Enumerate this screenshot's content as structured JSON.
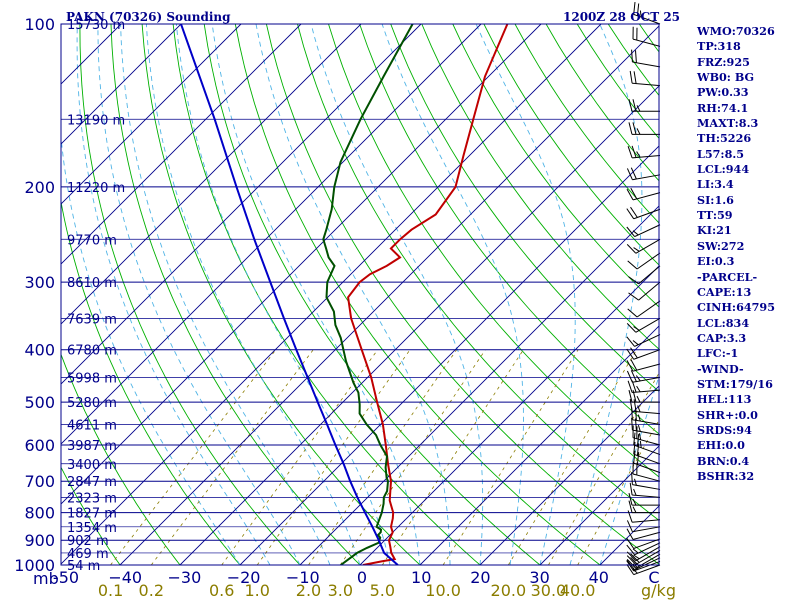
{
  "header": {
    "title": "PAKN (70326) Sounding",
    "time": "1200Z 28 OCT 25"
  },
  "colors": {
    "frame": "#00008b",
    "isotherm": "#00008b",
    "dry_adiabat": "#00b000",
    "moist_adiabat": "#50b4e6",
    "mixing_ratio": "#8b7d00",
    "temperature": "#c00000",
    "dewpoint": "#005000",
    "parcel": "#0000c8",
    "wind_barb": "#000000",
    "index_text": "#00008b"
  },
  "indices": [
    "WMO:70326",
    "TP:318",
    "FRZ:925",
    "WB0: BG",
    "PW:0.33",
    "RH:74.1",
    "MAXT:8.3",
    "TH:5226",
    "L57:8.5",
    "LCL:944",
    "LI:3.4",
    "SI:1.6",
    "TT:59",
    "KI:21",
    "SW:272",
    "EI:0.3",
    "-PARCEL-",
    "CAPE:13",
    "CINH:64795",
    "LCL:834",
    "CAP:3.3",
    "LFC:-1",
    "-WIND-",
    "STM:179/16",
    "HEL:113",
    "SHR+:0.0",
    "SRDS:94",
    "EHI:0.0",
    "BRN:0.4",
    "BSHR:32"
  ],
  "chart_data": {
    "type": "line",
    "subtype": "skew-t log-p sounding",
    "title": "PAKN (70326) Sounding",
    "valid_time": "1200Z 28 OCT 25",
    "y_axis": {
      "label": "mb",
      "scale": "log",
      "range": [
        1000,
        100
      ],
      "ticks": [
        100,
        200,
        300,
        400,
        500,
        600,
        700,
        800,
        900,
        1000
      ]
    },
    "x_axis": {
      "label": "C",
      "range": [
        -50,
        50
      ],
      "skew": "45 degrees",
      "ticks": [
        -50,
        -40,
        -30,
        -20,
        -10,
        0,
        10,
        20,
        30,
        40
      ]
    },
    "temperature_labels": [
      "-50",
      "−40",
      "−30",
      "−20",
      "−10",
      "0",
      "10",
      "20",
      "30",
      "40",
      "C"
    ],
    "mixing_ratio_axis": {
      "unit": "g/kg",
      "labels": [
        "0.1",
        "0.2",
        "0.6",
        "1.0",
        "2.0",
        "3.0",
        "5.0",
        "10.0",
        "20.0",
        "30.0",
        "40.0"
      ],
      "values": [
        0.1,
        0.2,
        0.6,
        1.0,
        2.0,
        3.0,
        5.0,
        10.0,
        20.0,
        30.0,
        40.0
      ]
    },
    "mixing_ratio_unit_label": "g/kg",
    "height_labels": [
      {
        "p": 100,
        "label": "15730 m"
      },
      {
        "p": 150,
        "label": "13190 m"
      },
      {
        "p": 200,
        "label": "11220 m"
      },
      {
        "p": 250,
        "label": "9770 m"
      },
      {
        "p": 300,
        "label": "8610 m"
      },
      {
        "p": 350,
        "label": "7639 m"
      },
      {
        "p": 400,
        "label": "6780 m"
      },
      {
        "p": 450,
        "label": "5998 m"
      },
      {
        "p": 500,
        "label": "5280 m"
      },
      {
        "p": 550,
        "label": "4611 m"
      },
      {
        "p": 600,
        "label": "3987 m"
      },
      {
        "p": 650,
        "label": "3400 m"
      },
      {
        "p": 700,
        "label": "2847 m"
      },
      {
        "p": 750,
        "label": "2323 m"
      },
      {
        "p": 800,
        "label": "1827 m"
      },
      {
        "p": 850,
        "label": "1354 m"
      },
      {
        "p": 900,
        "label": "902 m"
      },
      {
        "p": 950,
        "label": "469 m"
      },
      {
        "p": 1000,
        "label": "54 m"
      }
    ],
    "series": [
      {
        "name": "temperature",
        "points": [
          [
            1000,
            0.5
          ],
          [
            985,
            3.0
          ],
          [
            975,
            4.8
          ],
          [
            950,
            3.2
          ],
          [
            925,
            2.0
          ],
          [
            900,
            0.7
          ],
          [
            870,
            0.0
          ],
          [
            850,
            -1.2
          ],
          [
            820,
            -2.3
          ],
          [
            800,
            -3.2
          ],
          [
            760,
            -5.8
          ],
          [
            700,
            -8.8
          ],
          [
            650,
            -12.2
          ],
          [
            600,
            -15.7
          ],
          [
            550,
            -19.6
          ],
          [
            500,
            -24.3
          ],
          [
            450,
            -29.4
          ],
          [
            400,
            -35.6
          ],
          [
            350,
            -42.6
          ],
          [
            320,
            -46.6
          ],
          [
            300,
            -47.2
          ],
          [
            290,
            -46.8
          ],
          [
            280,
            -45.4
          ],
          [
            270,
            -44.6
          ],
          [
            260,
            -47.6
          ],
          [
            250,
            -47.6
          ],
          [
            240,
            -47.3
          ],
          [
            225,
            -45.8
          ],
          [
            200,
            -47.1
          ],
          [
            175,
            -51.0
          ],
          [
            150,
            -55.4
          ],
          [
            125,
            -60.6
          ],
          [
            100,
            -65.6
          ]
        ]
      },
      {
        "name": "dewpoint",
        "points": [
          [
            1000,
            -3.2
          ],
          [
            985,
            -3.0
          ],
          [
            950,
            -2.5
          ],
          [
            930,
            -1.7
          ],
          [
            910,
            -0.6
          ],
          [
            890,
            -1.2
          ],
          [
            880,
            -2.0
          ],
          [
            870,
            -2.0
          ],
          [
            860,
            -2.4
          ],
          [
            850,
            -3.6
          ],
          [
            800,
            -5.1
          ],
          [
            770,
            -6.3
          ],
          [
            750,
            -7.3
          ],
          [
            730,
            -7.8
          ],
          [
            700,
            -9.3
          ],
          [
            690,
            -10.1
          ],
          [
            660,
            -12.0
          ],
          [
            630,
            -13.6
          ],
          [
            600,
            -16.6
          ],
          [
            575,
            -19.0
          ],
          [
            550,
            -22.3
          ],
          [
            525,
            -25.3
          ],
          [
            505,
            -26.8
          ],
          [
            480,
            -29.0
          ],
          [
            460,
            -31.5
          ],
          [
            420,
            -36.3
          ],
          [
            380,
            -41.1
          ],
          [
            360,
            -44.1
          ],
          [
            340,
            -46.6
          ],
          [
            320,
            -50.2
          ],
          [
            300,
            -52.6
          ],
          [
            280,
            -54.1
          ],
          [
            270,
            -56.5
          ],
          [
            260,
            -58.4
          ],
          [
            250,
            -60.4
          ],
          [
            240,
            -61.5
          ],
          [
            220,
            -64.0
          ],
          [
            200,
            -67.3
          ],
          [
            180,
            -70.4
          ],
          [
            150,
            -74.2
          ],
          [
            125,
            -77.5
          ],
          [
            100,
            -81.4
          ]
        ]
      },
      {
        "name": "parcel",
        "points": [
          [
            1000,
            6.3
          ],
          [
            950,
            2.0
          ],
          [
            900,
            -1.0
          ],
          [
            850,
            -4.3
          ],
          [
            800,
            -7.9
          ],
          [
            750,
            -11.7
          ],
          [
            700,
            -15.6
          ],
          [
            650,
            -19.6
          ],
          [
            600,
            -24.1
          ],
          [
            550,
            -28.9
          ],
          [
            500,
            -34.2
          ],
          [
            450,
            -40.0
          ],
          [
            400,
            -46.5
          ],
          [
            350,
            -53.8
          ],
          [
            300,
            -62.1
          ],
          [
            250,
            -71.9
          ],
          [
            200,
            -83.6
          ],
          [
            150,
            -98.5
          ],
          [
            100,
            -120.0
          ]
        ]
      }
    ],
    "wind_barbs": [
      {
        "p": 1000,
        "dir": 250,
        "spd": 15
      },
      {
        "p": 985,
        "dir": 250,
        "spd": 15
      },
      {
        "p": 970,
        "dir": 245,
        "spd": 15
      },
      {
        "p": 955,
        "dir": 240,
        "spd": 20
      },
      {
        "p": 940,
        "dir": 240,
        "spd": 20
      },
      {
        "p": 925,
        "dir": 240,
        "spd": 15
      },
      {
        "p": 910,
        "dir": 245,
        "spd": 15
      },
      {
        "p": 895,
        "dir": 250,
        "spd": 10
      },
      {
        "p": 870,
        "dir": 255,
        "spd": 10
      },
      {
        "p": 850,
        "dir": 260,
        "spd": 10
      },
      {
        "p": 825,
        "dir": 265,
        "spd": 10
      },
      {
        "p": 800,
        "dir": 270,
        "spd": 15
      },
      {
        "p": 775,
        "dir": 270,
        "spd": 15
      },
      {
        "p": 750,
        "dir": 275,
        "spd": 15
      },
      {
        "p": 725,
        "dir": 280,
        "spd": 15
      },
      {
        "p": 700,
        "dir": 285,
        "spd": 20
      },
      {
        "p": 675,
        "dir": 290,
        "spd": 20
      },
      {
        "p": 650,
        "dir": 290,
        "spd": 20
      },
      {
        "p": 625,
        "dir": 290,
        "spd": 25
      },
      {
        "p": 600,
        "dir": 285,
        "spd": 25
      },
      {
        "p": 575,
        "dir": 280,
        "spd": 25
      },
      {
        "p": 550,
        "dir": 280,
        "spd": 25
      },
      {
        "p": 525,
        "dir": 275,
        "spd": 25
      },
      {
        "p": 500,
        "dir": 270,
        "spd": 25
      },
      {
        "p": 475,
        "dir": 265,
        "spd": 25
      },
      {
        "p": 450,
        "dir": 260,
        "spd": 25
      },
      {
        "p": 425,
        "dir": 255,
        "spd": 20
      },
      {
        "p": 400,
        "dir": 250,
        "spd": 20
      },
      {
        "p": 375,
        "dir": 245,
        "spd": 15
      },
      {
        "p": 350,
        "dir": 240,
        "spd": 15
      },
      {
        "p": 325,
        "dir": 235,
        "spd": 10
      },
      {
        "p": 300,
        "dir": 230,
        "spd": 10
      },
      {
        "p": 280,
        "dir": 230,
        "spd": 10
      },
      {
        "p": 265,
        "dir": 235,
        "spd": 10
      },
      {
        "p": 250,
        "dir": 240,
        "spd": 15
      },
      {
        "p": 235,
        "dir": 245,
        "spd": 15
      },
      {
        "p": 220,
        "dir": 250,
        "spd": 20
      },
      {
        "p": 205,
        "dir": 255,
        "spd": 20
      },
      {
        "p": 190,
        "dir": 260,
        "spd": 20
      },
      {
        "p": 175,
        "dir": 265,
        "spd": 25
      },
      {
        "p": 160,
        "dir": 270,
        "spd": 25
      },
      {
        "p": 145,
        "dir": 270,
        "spd": 25
      },
      {
        "p": 130,
        "dir": 275,
        "spd": 20
      },
      {
        "p": 120,
        "dir": 280,
        "spd": 20
      },
      {
        "p": 110,
        "dir": 285,
        "spd": 20
      },
      {
        "p": 100,
        "dir": 290,
        "spd": 25
      }
    ]
  }
}
